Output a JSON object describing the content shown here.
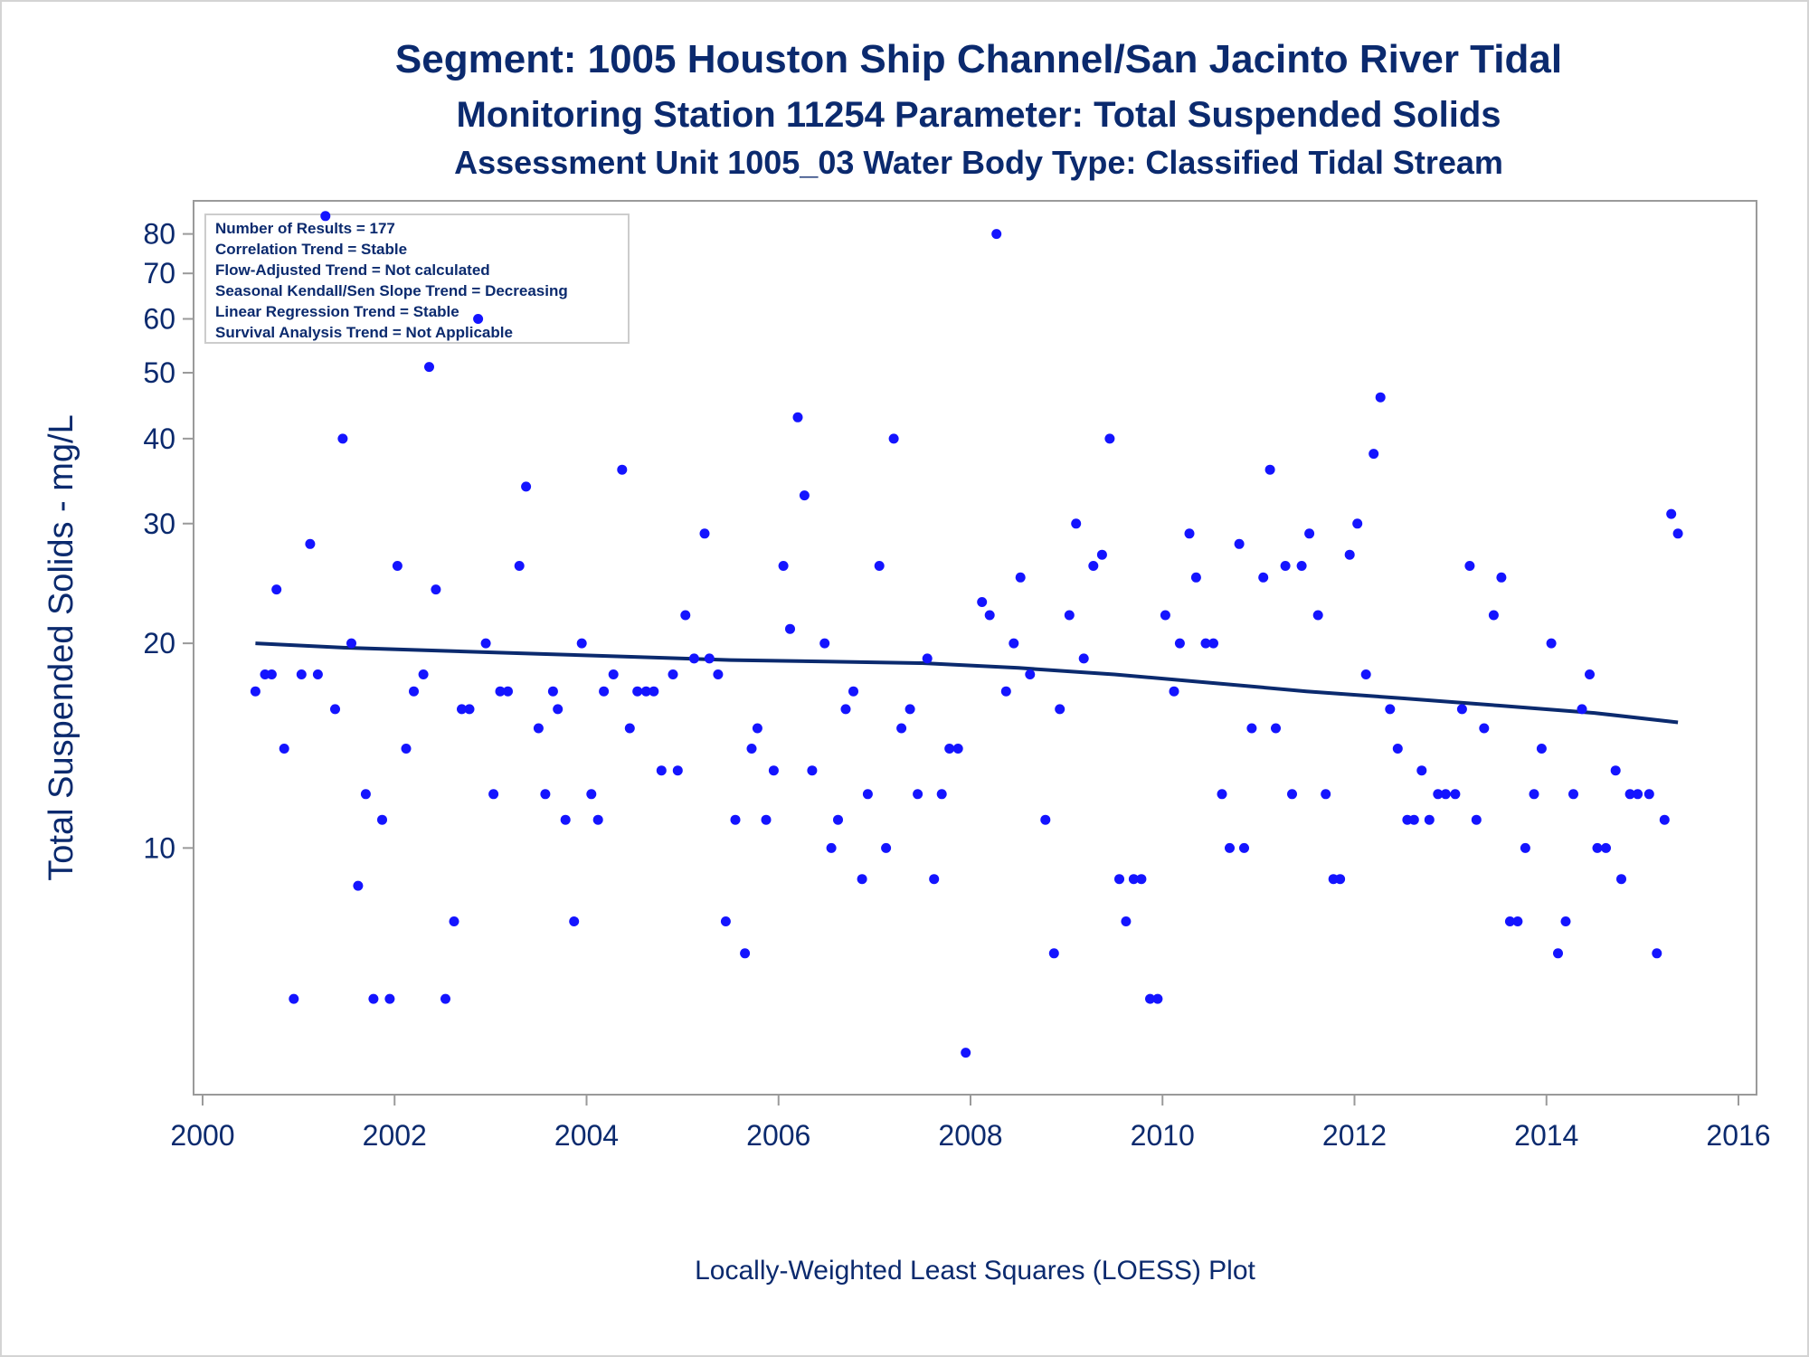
{
  "chart_data": {
    "type": "scatter",
    "title": "Segment: 1005  Houston Ship Channel/San Jacinto River Tidal",
    "subtitle": "Monitoring Station 11254 Parameter: Total Suspended Solids",
    "subtitle2": "Assessment Unit 1005_03   Water Body Type: Classified Tidal Stream",
    "ylabel": "Total Suspended Solids - mg/L",
    "xlabel": "",
    "footnote": "Locally-Weighted Least Squares (LOESS) Plot",
    "yscale": "log",
    "xlim": [
      2000,
      2016
    ],
    "ylim": [
      4.5,
      86
    ],
    "xticks": [
      2000,
      2002,
      2004,
      2006,
      2008,
      2010,
      2012,
      2014,
      2016
    ],
    "yticks": [
      10,
      20,
      30,
      40,
      50,
      60,
      70,
      80
    ],
    "grid": false,
    "stats": [
      "Number of Results = 177",
      "Correlation Trend = Stable",
      "Flow-Adjusted Trend = Not calculated",
      "Seasonal Kendall/Sen Slope Trend = Decreasing",
      "Linear Regression Trend = Stable",
      "Survival Analysis Trend = Not Applicable"
    ],
    "point_color": "#1414ff",
    "line_color": "#0b2a6e",
    "series": [
      {
        "type": "scatter",
        "points": [
          [
            2000.55,
            17
          ],
          [
            2000.65,
            18
          ],
          [
            2000.72,
            18
          ],
          [
            2000.77,
            24
          ],
          [
            2000.85,
            14
          ],
          [
            2000.95,
            6
          ],
          [
            2001.03,
            18
          ],
          [
            2001.12,
            28
          ],
          [
            2001.2,
            18
          ],
          [
            2001.28,
            85
          ],
          [
            2001.38,
            16
          ],
          [
            2001.46,
            40
          ],
          [
            2001.55,
            20
          ],
          [
            2001.62,
            8.8
          ],
          [
            2001.7,
            12
          ],
          [
            2001.78,
            6
          ],
          [
            2001.87,
            11
          ],
          [
            2001.95,
            6
          ],
          [
            2002.03,
            26
          ],
          [
            2002.12,
            14
          ],
          [
            2002.2,
            17
          ],
          [
            2002.3,
            18
          ],
          [
            2002.36,
            51
          ],
          [
            2002.43,
            24
          ],
          [
            2002.53,
            6
          ],
          [
            2002.62,
            7.8
          ],
          [
            2002.7,
            16
          ],
          [
            2002.78,
            16
          ],
          [
            2002.87,
            60
          ],
          [
            2002.95,
            20
          ],
          [
            2003.03,
            12
          ],
          [
            2003.1,
            17
          ],
          [
            2003.18,
            17
          ],
          [
            2003.3,
            26
          ],
          [
            2003.37,
            34
          ],
          [
            2003.5,
            15
          ],
          [
            2003.57,
            12
          ],
          [
            2003.65,
            17
          ],
          [
            2003.7,
            16
          ],
          [
            2003.78,
            11
          ],
          [
            2003.87,
            7.8
          ],
          [
            2003.95,
            20
          ],
          [
            2004.05,
            12
          ],
          [
            2004.12,
            11
          ],
          [
            2004.18,
            17
          ],
          [
            2004.28,
            18
          ],
          [
            2004.37,
            36
          ],
          [
            2004.45,
            15
          ],
          [
            2004.53,
            17
          ],
          [
            2004.62,
            17
          ],
          [
            2004.7,
            17
          ],
          [
            2004.78,
            13
          ],
          [
            2004.9,
            18
          ],
          [
            2004.95,
            13
          ],
          [
            2005.03,
            22
          ],
          [
            2005.12,
            19
          ],
          [
            2005.23,
            29
          ],
          [
            2005.28,
            19
          ],
          [
            2005.37,
            18
          ],
          [
            2005.45,
            7.8
          ],
          [
            2005.55,
            11
          ],
          [
            2005.65,
            7
          ],
          [
            2005.72,
            14
          ],
          [
            2005.78,
            15
          ],
          [
            2005.87,
            11
          ],
          [
            2005.95,
            13
          ],
          [
            2006.05,
            26
          ],
          [
            2006.12,
            21
          ],
          [
            2006.2,
            43
          ],
          [
            2006.27,
            33
          ],
          [
            2006.35,
            13
          ],
          [
            2006.48,
            20
          ],
          [
            2006.55,
            10
          ],
          [
            2006.62,
            11
          ],
          [
            2006.7,
            16
          ],
          [
            2006.78,
            17
          ],
          [
            2006.87,
            9
          ],
          [
            2006.93,
            12
          ],
          [
            2007.05,
            26
          ],
          [
            2007.12,
            10
          ],
          [
            2007.2,
            40
          ],
          [
            2007.28,
            15
          ],
          [
            2007.37,
            16
          ],
          [
            2007.45,
            12
          ],
          [
            2007.55,
            19
          ],
          [
            2007.62,
            9
          ],
          [
            2007.7,
            12
          ],
          [
            2007.78,
            14
          ],
          [
            2007.87,
            14
          ],
          [
            2007.95,
            5
          ],
          [
            2008.12,
            23
          ],
          [
            2008.2,
            22
          ],
          [
            2008.27,
            80
          ],
          [
            2008.37,
            17
          ],
          [
            2008.45,
            20
          ],
          [
            2008.52,
            25
          ],
          [
            2008.62,
            18
          ],
          [
            2008.78,
            11
          ],
          [
            2008.87,
            7
          ],
          [
            2008.93,
            16
          ],
          [
            2009.03,
            22
          ],
          [
            2009.1,
            30
          ],
          [
            2009.18,
            19
          ],
          [
            2009.28,
            26
          ],
          [
            2009.37,
            27
          ],
          [
            2009.45,
            40
          ],
          [
            2009.55,
            9
          ],
          [
            2009.62,
            7.8
          ],
          [
            2009.7,
            9
          ],
          [
            2009.78,
            9
          ],
          [
            2009.87,
            6
          ],
          [
            2009.95,
            6
          ],
          [
            2010.03,
            22
          ],
          [
            2010.12,
            17
          ],
          [
            2010.18,
            20
          ],
          [
            2010.28,
            29
          ],
          [
            2010.35,
            25
          ],
          [
            2010.45,
            20
          ],
          [
            2010.53,
            20
          ],
          [
            2010.62,
            12
          ],
          [
            2010.7,
            10
          ],
          [
            2010.8,
            28
          ],
          [
            2010.85,
            10
          ],
          [
            2010.93,
            15
          ],
          [
            2011.05,
            25
          ],
          [
            2011.12,
            36
          ],
          [
            2011.18,
            15
          ],
          [
            2011.28,
            26
          ],
          [
            2011.35,
            12
          ],
          [
            2011.45,
            26
          ],
          [
            2011.53,
            29
          ],
          [
            2011.62,
            22
          ],
          [
            2011.7,
            12
          ],
          [
            2011.78,
            9
          ],
          [
            2011.85,
            9
          ],
          [
            2011.95,
            27
          ],
          [
            2012.03,
            30
          ],
          [
            2012.12,
            18
          ],
          [
            2012.2,
            38
          ],
          [
            2012.27,
            46
          ],
          [
            2012.37,
            16
          ],
          [
            2012.45,
            14
          ],
          [
            2012.55,
            11
          ],
          [
            2012.62,
            11
          ],
          [
            2012.7,
            13
          ],
          [
            2012.78,
            11
          ],
          [
            2012.87,
            12
          ],
          [
            2012.95,
            12
          ],
          [
            2013.05,
            12
          ],
          [
            2013.12,
            16
          ],
          [
            2013.2,
            26
          ],
          [
            2013.27,
            11
          ],
          [
            2013.35,
            15
          ],
          [
            2013.45,
            22
          ],
          [
            2013.53,
            25
          ],
          [
            2013.62,
            7.8
          ],
          [
            2013.7,
            7.8
          ],
          [
            2013.78,
            10
          ],
          [
            2013.87,
            12
          ],
          [
            2013.95,
            14
          ],
          [
            2014.05,
            20
          ],
          [
            2014.12,
            7
          ],
          [
            2014.2,
            7.8
          ],
          [
            2014.28,
            12
          ],
          [
            2014.37,
            16
          ],
          [
            2014.45,
            18
          ],
          [
            2014.53,
            10
          ],
          [
            2014.62,
            10
          ],
          [
            2014.72,
            13
          ],
          [
            2014.78,
            9
          ],
          [
            2014.87,
            12
          ],
          [
            2014.95,
            12
          ],
          [
            2015.07,
            12
          ],
          [
            2015.15,
            7
          ],
          [
            2015.23,
            11
          ],
          [
            2015.3,
            31
          ],
          [
            2015.37,
            29
          ]
        ]
      },
      {
        "type": "line",
        "points": [
          [
            2000.55,
            20
          ],
          [
            2001.5,
            19.7
          ],
          [
            2002.5,
            19.5
          ],
          [
            2003.5,
            19.3
          ],
          [
            2004.5,
            19.1
          ],
          [
            2005.5,
            18.9
          ],
          [
            2006.5,
            18.8
          ],
          [
            2007.5,
            18.7
          ],
          [
            2008.5,
            18.4
          ],
          [
            2009.5,
            18.0
          ],
          [
            2010.5,
            17.5
          ],
          [
            2011.5,
            17.0
          ],
          [
            2012.5,
            16.6
          ],
          [
            2013.5,
            16.2
          ],
          [
            2014.5,
            15.8
          ],
          [
            2015.37,
            15.3
          ]
        ]
      }
    ]
  }
}
